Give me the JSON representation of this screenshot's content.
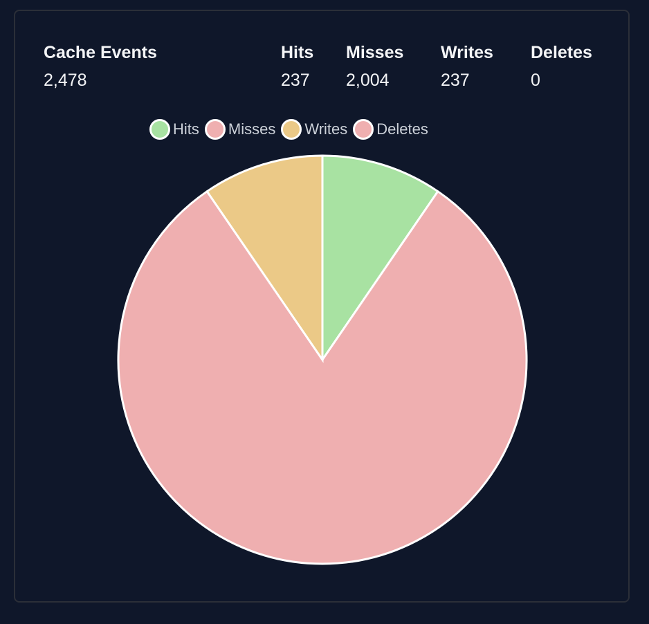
{
  "summary": {
    "title": "Cache Events",
    "total": "2,478",
    "stats": [
      {
        "label": "Hits",
        "value": "237"
      },
      {
        "label": "Misses",
        "value": "2,004"
      },
      {
        "label": "Writes",
        "value": "237"
      },
      {
        "label": "Deletes",
        "value": "0"
      }
    ]
  },
  "legend": [
    {
      "label": "Hits",
      "color": "#a8e2a2"
    },
    {
      "label": "Misses",
      "color": "#efafb0"
    },
    {
      "label": "Writes",
      "color": "#ebc987"
    },
    {
      "label": "Deletes",
      "color": "#efafb0"
    }
  ],
  "chart_data": {
    "type": "pie",
    "title": "Cache Events",
    "categories": [
      "Hits",
      "Misses",
      "Writes",
      "Deletes"
    ],
    "values": [
      237,
      2004,
      237,
      0
    ],
    "colors": [
      "#a8e2a2",
      "#efafb0",
      "#ebc987",
      "#efafb0"
    ],
    "legend_position": "top"
  }
}
